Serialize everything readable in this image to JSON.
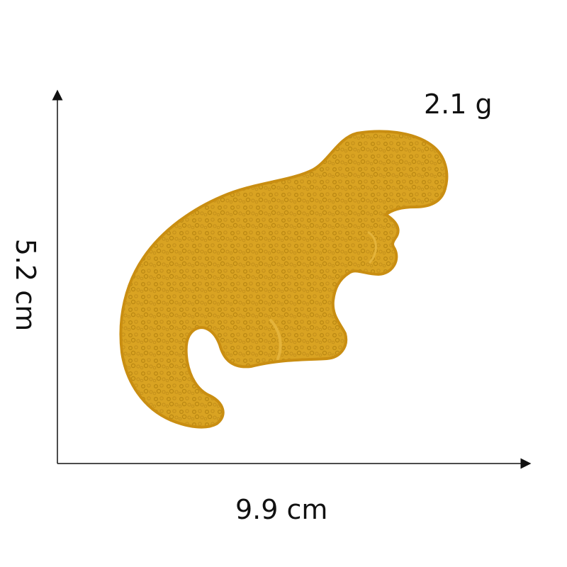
{
  "labels": {
    "weight": "2.1 g",
    "height": "5.2 cm",
    "width": "9.9 cm"
  },
  "product": {
    "icon": "dinosaur-patch-icon",
    "color": "#D9A322",
    "edge_color": "#C98E12",
    "texture_color": "#B98712"
  },
  "axes": {
    "color": "#111111"
  }
}
